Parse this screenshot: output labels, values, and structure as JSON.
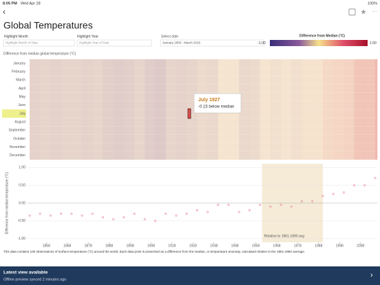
{
  "status": {
    "time": "8:05 PM",
    "date": "Wed Apr 28",
    "battery": "100%"
  },
  "header": {
    "title": "Global Temperatures"
  },
  "filters": {
    "month": {
      "label": "Highlight Month",
      "placeholder": "Highlight Month of Date"
    },
    "year": {
      "label": "Highlight Year",
      "placeholder": "Highlight Year of Date"
    },
    "date": {
      "label": "Select date",
      "value": "January 1850 - March 2016"
    }
  },
  "legend": {
    "title": "Difference from Median (°C)",
    "ticks": [
      {
        "value": -1,
        "label": "-1.00"
      },
      {
        "value": 1,
        "label": "1.00"
      }
    ]
  },
  "heatmap": {
    "label": "Difference from median global temperature (°C)",
    "months": [
      "January",
      "February",
      "March",
      "April",
      "May",
      "June",
      "July",
      "August",
      "September",
      "October",
      "November",
      "December"
    ],
    "tooltip": {
      "title": "July 1927",
      "text": "-0.15 below median"
    }
  },
  "chart_data": {
    "type": "scatter",
    "y_label": "Difference from median temperature (°C)",
    "xlim": [
      1849,
      2016
    ],
    "xticks": [
      1858,
      1868,
      1878,
      1888,
      1898,
      1908,
      1918,
      1928,
      1938,
      1948,
      1958,
      1968,
      1978,
      1988,
      1998,
      2008
    ],
    "ylim": [
      -1.1,
      1.1
    ],
    "yticks": [
      {
        "value": 1,
        "label": "1.00"
      },
      {
        "value": 0.5,
        "label": "0.50"
      },
      {
        "value": 0,
        "label": "0.00"
      },
      {
        "value": -0.5,
        "label": "-0.50"
      },
      {
        "value": -1,
        "label": "-1.00"
      }
    ],
    "band": {
      "label": "Relative to 1961-1990 avg",
      "range": [
        1961,
        1990
      ]
    },
    "x": [
      1850,
      1855,
      1860,
      1865,
      1870,
      1875,
      1880,
      1885,
      1890,
      1895,
      1900,
      1905,
      1910,
      1915,
      1920,
      1925,
      1930,
      1935,
      1940,
      1945,
      1950,
      1955,
      1960,
      1965,
      1970,
      1975,
      1980,
      1985,
      1990,
      1995,
      2000,
      2005,
      2010,
      2015
    ],
    "values": [
      -0.35,
      -0.3,
      -0.35,
      -0.3,
      -0.3,
      -0.35,
      -0.3,
      -0.4,
      -0.45,
      -0.4,
      -0.3,
      -0.45,
      -0.5,
      -0.3,
      -0.35,
      -0.3,
      -0.2,
      -0.25,
      -0.05,
      -0.05,
      -0.25,
      -0.2,
      -0.05,
      -0.1,
      -0.05,
      -0.1,
      0.05,
      0.05,
      0.2,
      0.25,
      0.3,
      0.5,
      0.5,
      0.7
    ],
    "color": "#e88a9a"
  },
  "footer": {
    "text": "This data contains 100 observations of surface temperature (°C) around the world. Each data point is presented as a difference from the median, or temperature anomaly, calculated relative to the 1961-1990 average."
  },
  "banner": {
    "title": "Latest view available",
    "subtitle": "Offline preview synced 2 minutes ago"
  }
}
